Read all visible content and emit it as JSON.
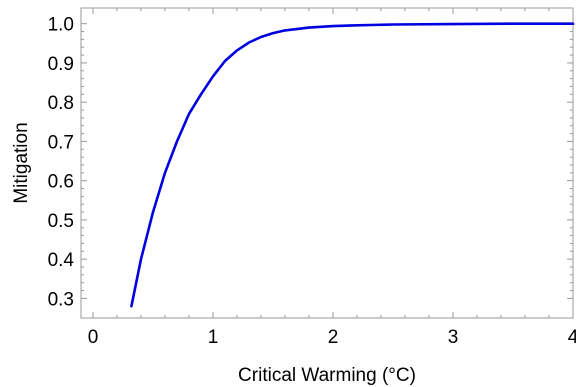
{
  "chart_data": {
    "type": "line",
    "title": "",
    "xlabel": "Critical Warming (°C)",
    "ylabel": "Mitigation",
    "xlim": [
      -0.1,
      4.0
    ],
    "ylim": [
      0.25,
      1.04
    ],
    "x_ticks": [
      0,
      1,
      2,
      3,
      4
    ],
    "x_tick_labels": [
      "0",
      "1",
      "2",
      "3",
      "4"
    ],
    "y_ticks": [
      0.3,
      0.4,
      0.5,
      0.6,
      0.7,
      0.8,
      0.9,
      1.0
    ],
    "y_tick_labels": [
      "0.3",
      "0.4",
      "0.5",
      "0.6",
      "0.7",
      "0.8",
      "0.9",
      "1.0"
    ],
    "grid": false,
    "series": [
      {
        "color": "#0000e0",
        "x": [
          0.32,
          0.4,
          0.5,
          0.6,
          0.7,
          0.8,
          0.9,
          1.0,
          1.1,
          1.2,
          1.3,
          1.4,
          1.5,
          1.6,
          1.8,
          2.0,
          2.2,
          2.5,
          3.0,
          3.5,
          4.0
        ],
        "y": [
          0.28,
          0.4,
          0.52,
          0.62,
          0.7,
          0.77,
          0.82,
          0.866,
          0.905,
          0.932,
          0.952,
          0.966,
          0.976,
          0.983,
          0.99,
          0.994,
          0.996,
          0.998,
          0.999,
          1.0,
          1.0
        ]
      }
    ]
  }
}
